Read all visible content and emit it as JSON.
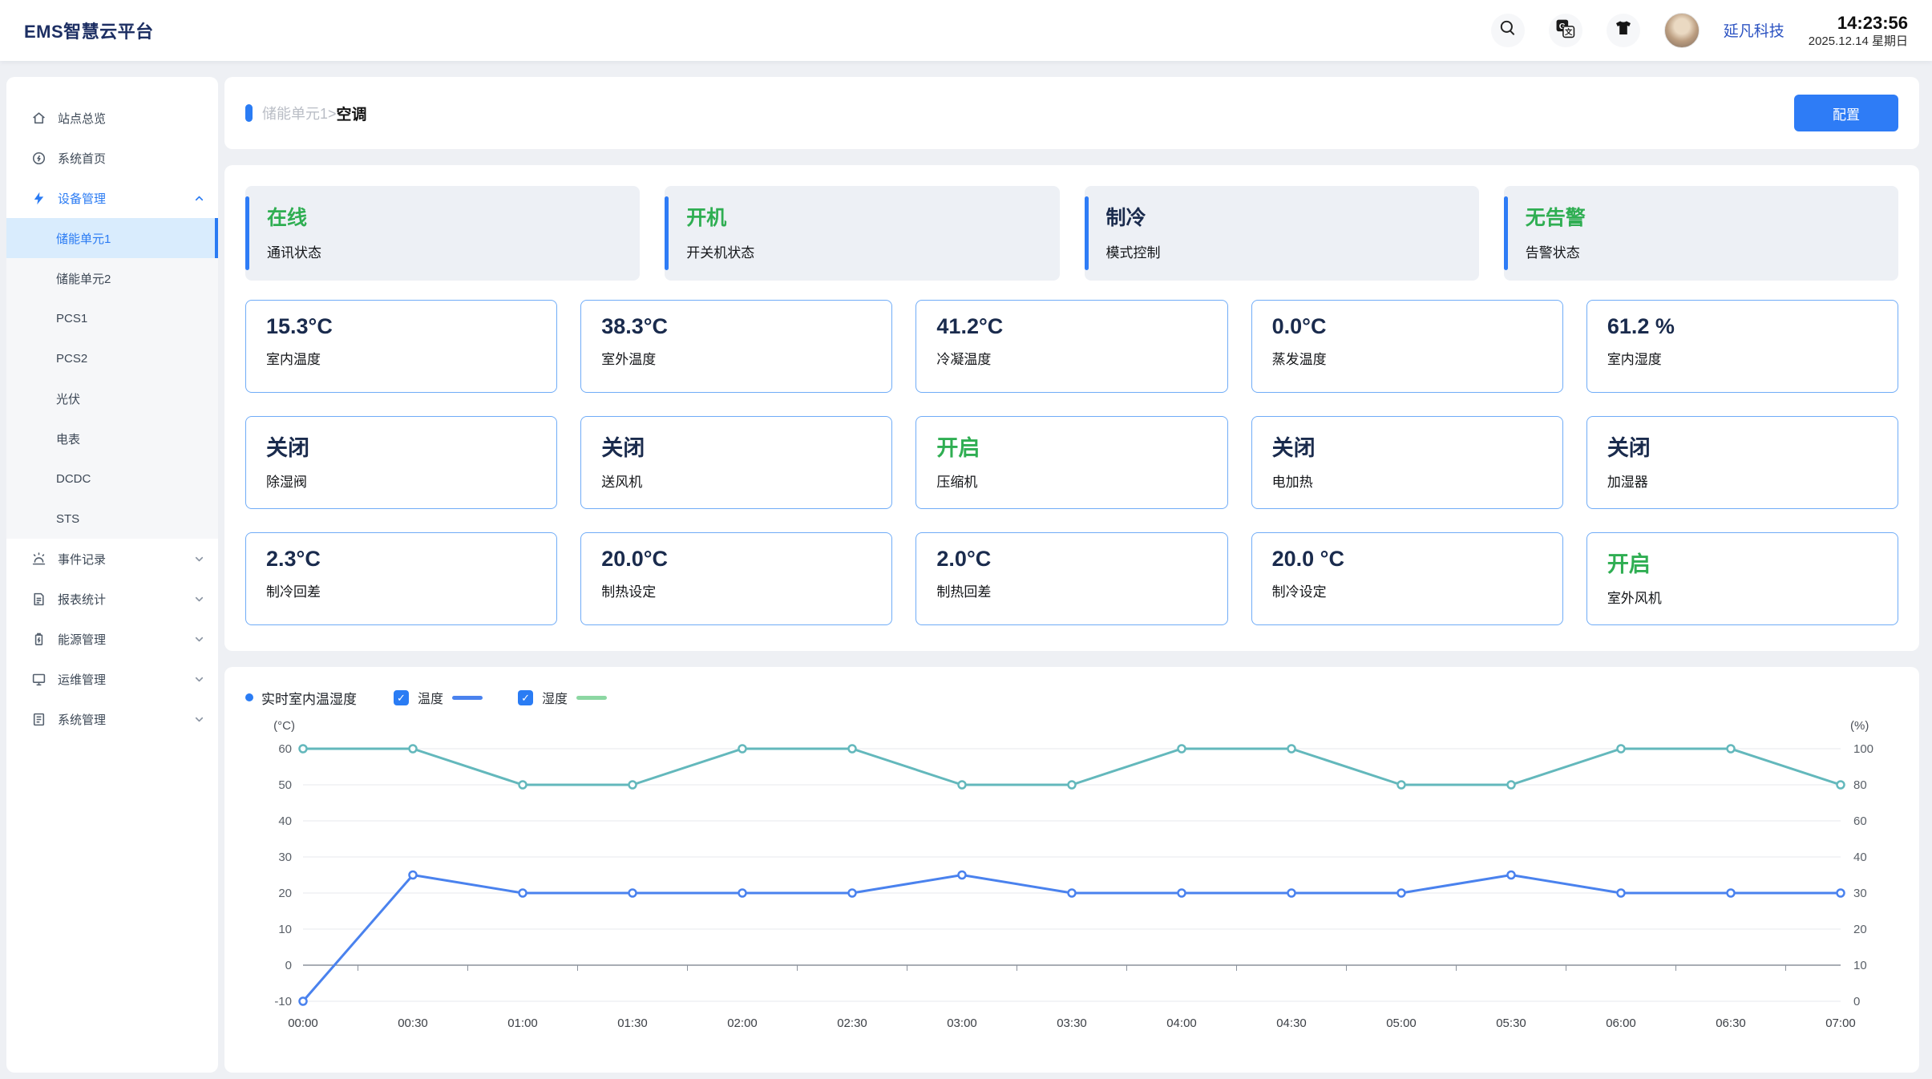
{
  "header": {
    "logo": "EMS智慧云平台",
    "company": "延凡科技",
    "time": "14:23:56",
    "date": "2025.12.14  星期日",
    "icons": [
      "search",
      "translate",
      "shirt"
    ]
  },
  "sidebar": {
    "items": [
      {
        "id": "site-overview",
        "label": "站点总览",
        "icon": "home"
      },
      {
        "id": "system-home",
        "label": "系统首页",
        "icon": "gauge"
      },
      {
        "id": "device-management",
        "label": "设备管理",
        "icon": "bolt",
        "active": true,
        "chevron": "up",
        "children": [
          {
            "id": "unit1",
            "label": "储能单元1",
            "selected": true
          },
          {
            "id": "unit2",
            "label": "储能单元2"
          },
          {
            "id": "pcs1",
            "label": "PCS1"
          },
          {
            "id": "pcs2",
            "label": "PCS2"
          },
          {
            "id": "pv",
            "label": "光伏"
          },
          {
            "id": "meter",
            "label": "电表"
          },
          {
            "id": "dcdc",
            "label": "DCDC"
          },
          {
            "id": "sts",
            "label": "STS"
          }
        ]
      },
      {
        "id": "event-log",
        "label": "事件记录",
        "icon": "alarm",
        "chevron": "down"
      },
      {
        "id": "report-stats",
        "label": "报表统计",
        "icon": "report",
        "chevron": "down"
      },
      {
        "id": "energy-management",
        "label": "能源管理",
        "icon": "battery",
        "chevron": "down"
      },
      {
        "id": "ops-management",
        "label": "运维管理",
        "icon": "monitor",
        "chevron": "down"
      },
      {
        "id": "system-management",
        "label": "系统管理",
        "icon": "sysdoc",
        "chevron": "down"
      }
    ]
  },
  "breadcrumb": {
    "parent": "储能单元1>",
    "current": "空调"
  },
  "toolbar": {
    "config_label": "配置"
  },
  "status_cards": [
    {
      "value": "在线",
      "label": "通讯状态",
      "tone": "green"
    },
    {
      "value": "开机",
      "label": "开关机状态",
      "tone": "green"
    },
    {
      "value": "制冷",
      "label": "模式控制",
      "tone": "navy"
    },
    {
      "value": "无告警",
      "label": "告警状态",
      "tone": "green"
    }
  ],
  "metric_rows": [
    [
      {
        "value": "15.3°C",
        "label": "室内温度",
        "tone": "navy"
      },
      {
        "value": "38.3°C",
        "label": "室外温度",
        "tone": "navy"
      },
      {
        "value": "41.2°C",
        "label": "冷凝温度",
        "tone": "navy"
      },
      {
        "value": "0.0°C",
        "label": "蒸发温度",
        "tone": "navy"
      },
      {
        "value": "61.2 %",
        "label": "室内湿度",
        "tone": "navy"
      }
    ],
    [
      {
        "value": "关闭",
        "label": "除湿阀",
        "tone": "navy"
      },
      {
        "value": "关闭",
        "label": "送风机",
        "tone": "navy"
      },
      {
        "value": "开启",
        "label": "压缩机",
        "tone": "green"
      },
      {
        "value": "关闭",
        "label": "电加热",
        "tone": "navy"
      },
      {
        "value": "关闭",
        "label": "加湿器",
        "tone": "navy"
      }
    ],
    [
      {
        "value": "2.3°C",
        "label": "制冷回差",
        "tone": "navy"
      },
      {
        "value": "20.0°C",
        "label": "制热设定",
        "tone": "navy"
      },
      {
        "value": "2.0°C",
        "label": "制热回差",
        "tone": "navy"
      },
      {
        "value": "20.0 °C",
        "label": "制冷设定",
        "tone": "navy"
      },
      {
        "value": "开启",
        "label": "室外风机",
        "tone": "green"
      }
    ]
  ],
  "chart_data": {
    "type": "line",
    "title": "实时室内温湿度",
    "x": [
      "00:00",
      "00:30",
      "01:00",
      "01:30",
      "02:00",
      "02:30",
      "03:00",
      "03:30",
      "04:00",
      "04:30",
      "05:00",
      "05:30",
      "06:00",
      "06:30",
      "07:00"
    ],
    "series": [
      {
        "name": "温度",
        "unit": "°C",
        "axis": "left",
        "color": "#4A82EE",
        "legend_color": "#4A82EE",
        "values": [
          -10,
          25,
          20,
          20,
          20,
          20,
          25,
          20,
          20,
          20,
          20,
          25,
          20,
          20,
          20
        ]
      },
      {
        "name": "湿度",
        "unit": "%",
        "axis": "right",
        "color": "#63B8BC",
        "legend_color": "#8CD7A2",
        "values": [
          100,
          100,
          80,
          80,
          100,
          100,
          80,
          80,
          100,
          100,
          80,
          80,
          100,
          100,
          80
        ]
      }
    ],
    "left_axis": {
      "label": "(°C)",
      "ticks": [
        60,
        50,
        40,
        30,
        20,
        10,
        0,
        -10
      ]
    },
    "right_axis": {
      "label": "(%)",
      "ticks": [
        100,
        80,
        60,
        40,
        30,
        20,
        10,
        0
      ]
    },
    "legend": {
      "position": "top-left",
      "checkboxes_checked": [
        true,
        true
      ]
    },
    "grid": true,
    "x_axis_line_at_left_value": 0
  },
  "colors": {
    "accent_blue": "#2A7CF4",
    "green": "#2FAE52",
    "navy": "#1A2B4D",
    "card_border": "#70ACF7",
    "page_bg": "#EEF0F4",
    "status_card_bg": "#EDF0F5",
    "grid_line": "#E7E9EC",
    "axis_line": "#8B929C"
  }
}
